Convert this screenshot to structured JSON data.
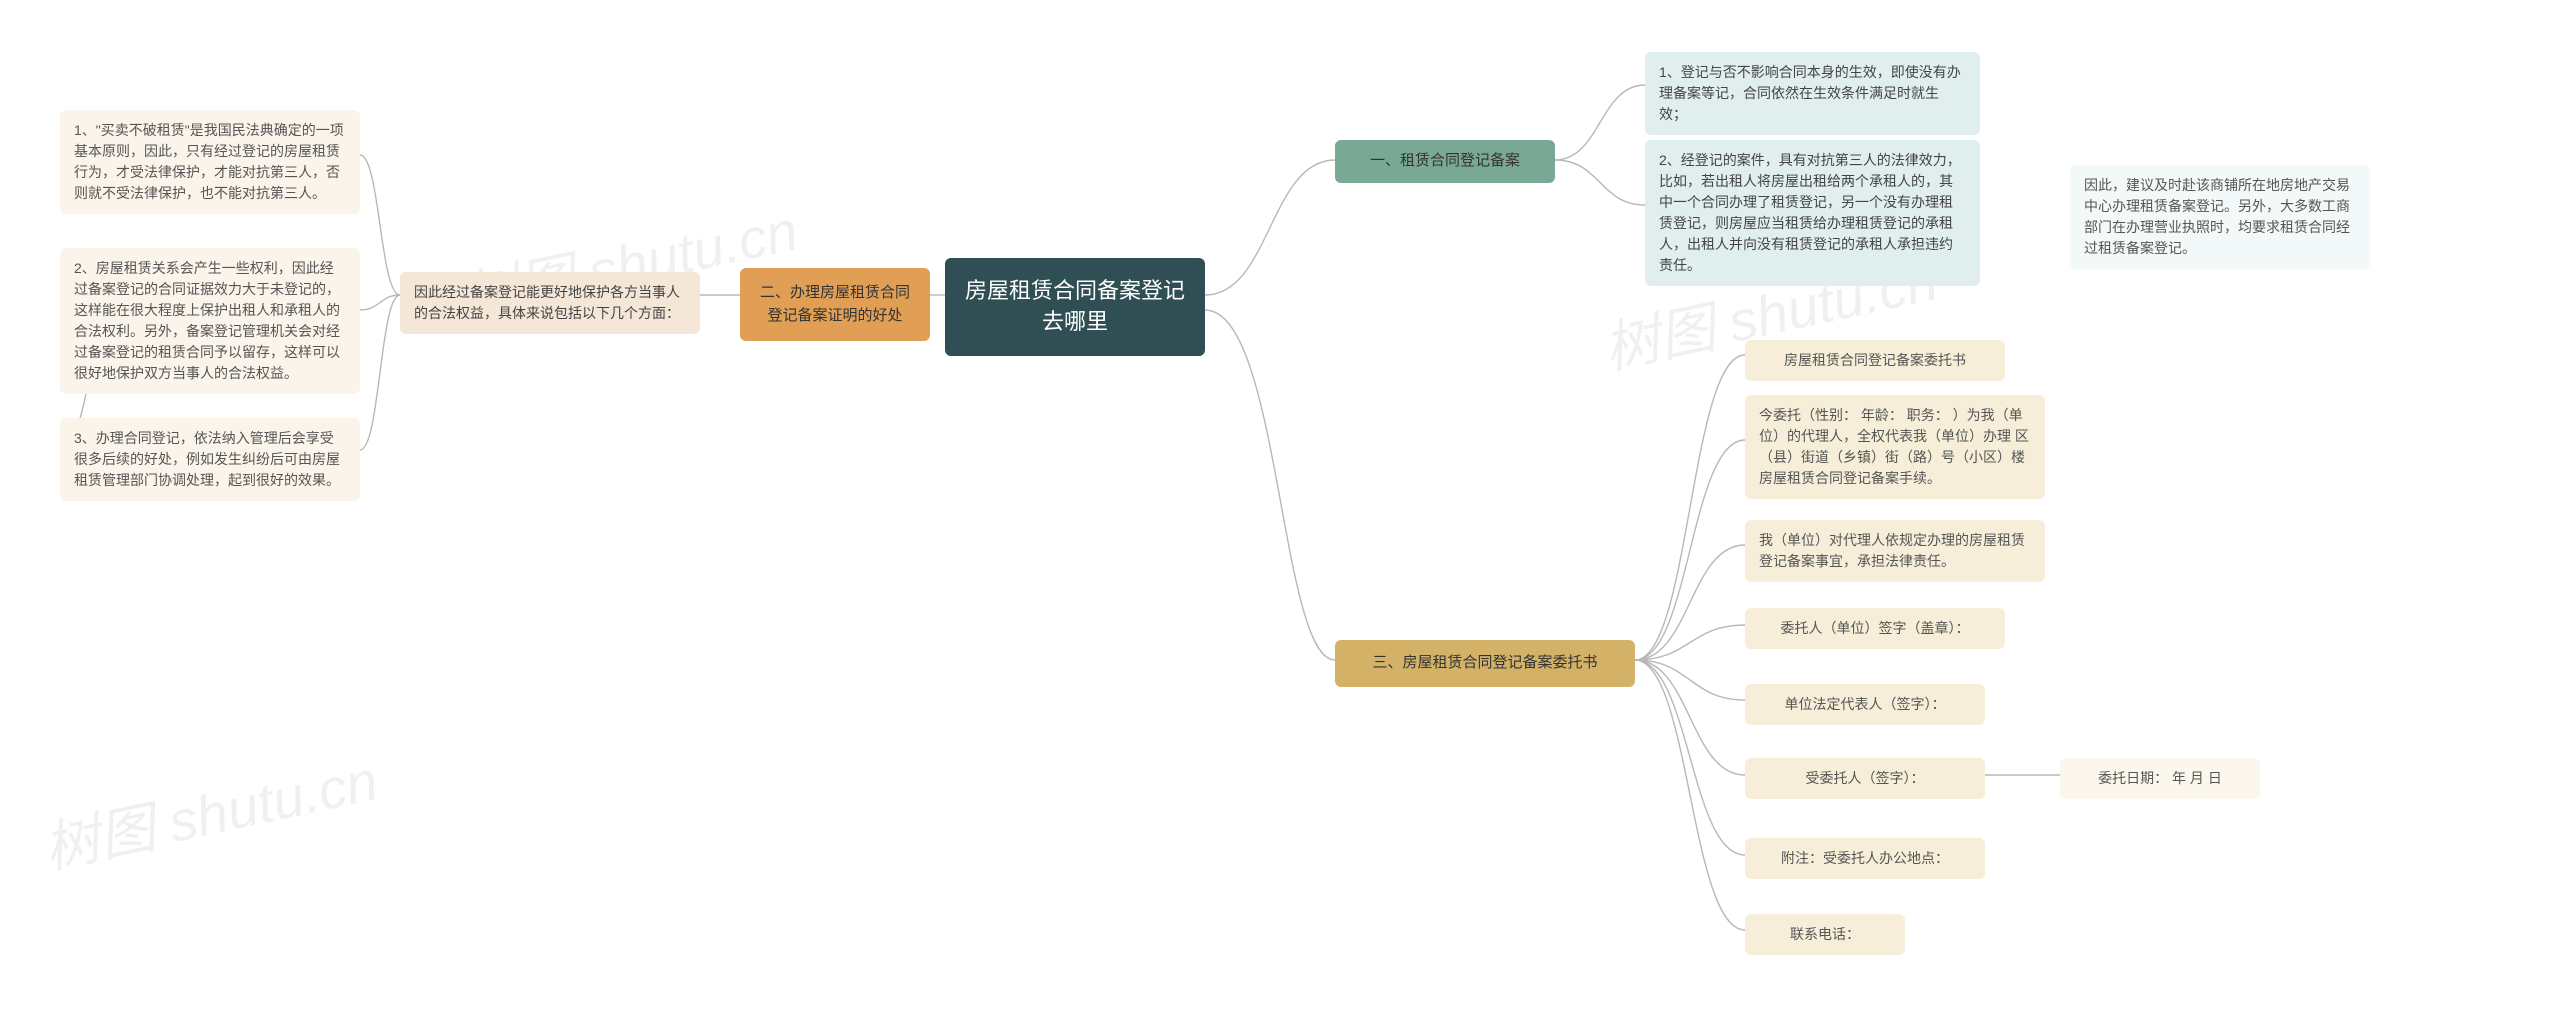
{
  "root": {
    "title": "房屋租赁合同备案登记去哪里"
  },
  "branch1": {
    "title": "一、租赁合同登记备案",
    "n1": "1、登记与否不影响合同本身的生效，即使没有办理备案等记，合同依然在生效条件满足时就生效；",
    "n2": "2、经登记的案件，具有对抗第三人的法律效力，比如，若出租人将房屋出租给两个承租人的，其中一个合同办理了租赁登记，另一个没有办理租赁登记，则房屋应当租赁给办理租赁登记的承租人，出租人并向没有租赁登记的承租人承担违约责任。",
    "n2leaf": "因此，建议及时赴该商铺所在地房地产交易中心办理租赁备案登记。另外，大多数工商部门在办理营业执照时，均要求租赁合同经过租赁备案登记。"
  },
  "branch2": {
    "title": "二、办理房屋租赁合同登记备案证明的好处",
    "intro": "因此经过备案登记能更好地保护各方当事人的合法权益，具体来说包括以下几个方面：",
    "n1": "1、\"买卖不破租赁\"是我国民法典确定的一项基本原则，因此，只有经过登记的房屋租赁行为，才受法律保护，才能对抗第三人，否则就不受法律保护，也不能对抗第三人。",
    "n2": "2、房屋租赁关系会产生一些权利，因此经过备案登记的合同证据效力大于未登记的，这样能在很大程度上保护出租人和承租人的合法权利。另外，备案登记管理机关会对经过备案登记的租赁合同予以留存，这样可以很好地保护双方当事人的合法权益。",
    "n3": "3、办理合同登记，依法纳入管理后会享受很多后续的好处，例如发生纠纷后可由房屋租赁管理部门协调处理，起到很好的效果。"
  },
  "branch3": {
    "title": "三、房屋租赁合同登记备案委托书",
    "n1": "房屋租赁合同登记备案委托书",
    "n2": "今委托（性别： 年龄： 职务： ）为我（单位）的代理人，全权代表我（单位）办理 区（县）街道（乡镇）街（路）号（小区）楼房屋租赁合同登记备案手续。",
    "n3": "我（单位）对代理人依规定办理的房屋租赁登记备案事宜，承担法律责任。",
    "n4": "委托人（单位）签字（盖章）：",
    "n5": "单位法定代表人（签字）：",
    "n6": "受委托人（签字）：",
    "n6leaf": "委托日期： 年 月 日",
    "n7": "附注：受委托人办公地点：",
    "n8": "联系电话："
  },
  "watermark": "树图 shutu.cn"
}
